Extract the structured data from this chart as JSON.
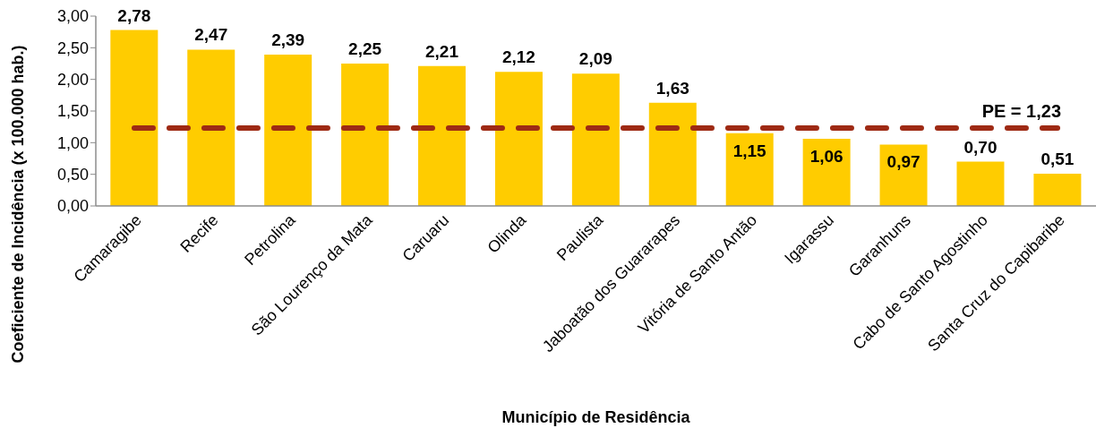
{
  "chart_data": {
    "type": "bar",
    "xlabel": "Município de Residência",
    "ylabel": "Coeficiente de Incidência (x 100.000 hab.)",
    "categories": [
      "Camaragibe",
      "Recife",
      "Petrolina",
      "São Lourenço da Mata",
      "Caruaru",
      "Olinda",
      "Paulista",
      "Jaboatão dos Guararapes",
      "Vitória de Santo Antão",
      "Igarassu",
      "Garanhuns",
      "Cabo de Santo Agostinho",
      "Santa Cruz do Capibaribe"
    ],
    "values": [
      2.78,
      2.47,
      2.39,
      2.25,
      2.21,
      2.12,
      2.09,
      1.63,
      1.15,
      1.06,
      0.97,
      0.7,
      0.51
    ],
    "value_labels": [
      "2,78",
      "2,47",
      "2,39",
      "2,25",
      "2,21",
      "2,12",
      "2,09",
      "1,63",
      "1,15",
      "1,06",
      "0,97",
      "0,70",
      "0,51"
    ],
    "color": "#ffcc00",
    "ylim": [
      0,
      3
    ],
    "yticks": [
      {
        "value": 0,
        "label": "0,00"
      },
      {
        "value": 0.5,
        "label": "0,50"
      },
      {
        "value": 1,
        "label": "1,00"
      },
      {
        "value": 1.5,
        "label": "1,50"
      },
      {
        "value": 2,
        "label": "2,00"
      },
      {
        "value": 2.5,
        "label": "2,50"
      },
      {
        "value": 3,
        "label": "3,00"
      }
    ],
    "ref_lines": [
      {
        "axis": "y",
        "value": 1.23,
        "label": "PE = 1,23",
        "color": "#9e2a14",
        "line_style": "dashed"
      }
    ]
  }
}
